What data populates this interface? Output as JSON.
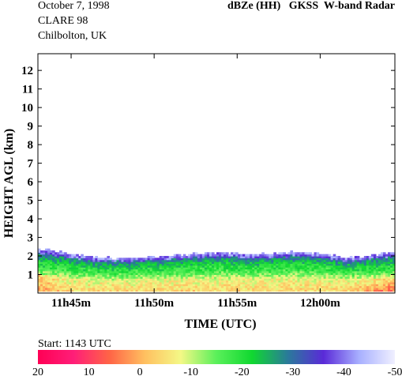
{
  "header": {
    "date": "October  7, 1998",
    "campaign": "CLARE 98",
    "location": "Chilbolton, UK",
    "product": "dBZe (HH)   GKSS  W-band Radar"
  },
  "footer": {
    "start_label": "Start: 1143 UTC"
  },
  "colors": {
    "axis": "#000000",
    "background": "#ffffff"
  },
  "chart_data": {
    "type": "heatmap",
    "title": "dBZe (HH)   GKSS  W-band Radar",
    "xlabel": "TIME (UTC)",
    "ylabel": "HEIGHT AGL (km)",
    "x_ticks": [
      "11h45m",
      "11h50m",
      "11h55m",
      "12h00m"
    ],
    "x_tick_minutes": [
      2,
      7,
      12,
      17
    ],
    "xlim_minutes_after_1143": [
      0,
      21.5
    ],
    "ylim": [
      0,
      12.9
    ],
    "y_ticks": [
      1,
      2,
      3,
      4,
      5,
      6,
      7,
      8,
      9,
      10,
      11,
      12
    ],
    "colorbar": {
      "ticks": [
        "20",
        "10",
        "0",
        "-10",
        "-20",
        "-30",
        "-40",
        "-50"
      ],
      "range_dBZ": [
        20,
        -50
      ],
      "stops": [
        "#ff0055",
        "#ff1e78",
        "#ff6446",
        "#ffc060",
        "#f4f886",
        "#5af05a",
        "#10d830",
        "#2a7a9a",
        "#5a2ad8",
        "#a8b0ff",
        "#f0f0ff"
      ]
    },
    "cloud_top_km": [
      2.35,
      2.25,
      2.05,
      1.95,
      1.85,
      1.85,
      1.85,
      1.9,
      1.95,
      2.0,
      2.05,
      2.1,
      2.15,
      2.1,
      2.05,
      2.1,
      2.15,
      2.2,
      2.1,
      2.0,
      1.9,
      1.95,
      2.05,
      2.15
    ]
  }
}
